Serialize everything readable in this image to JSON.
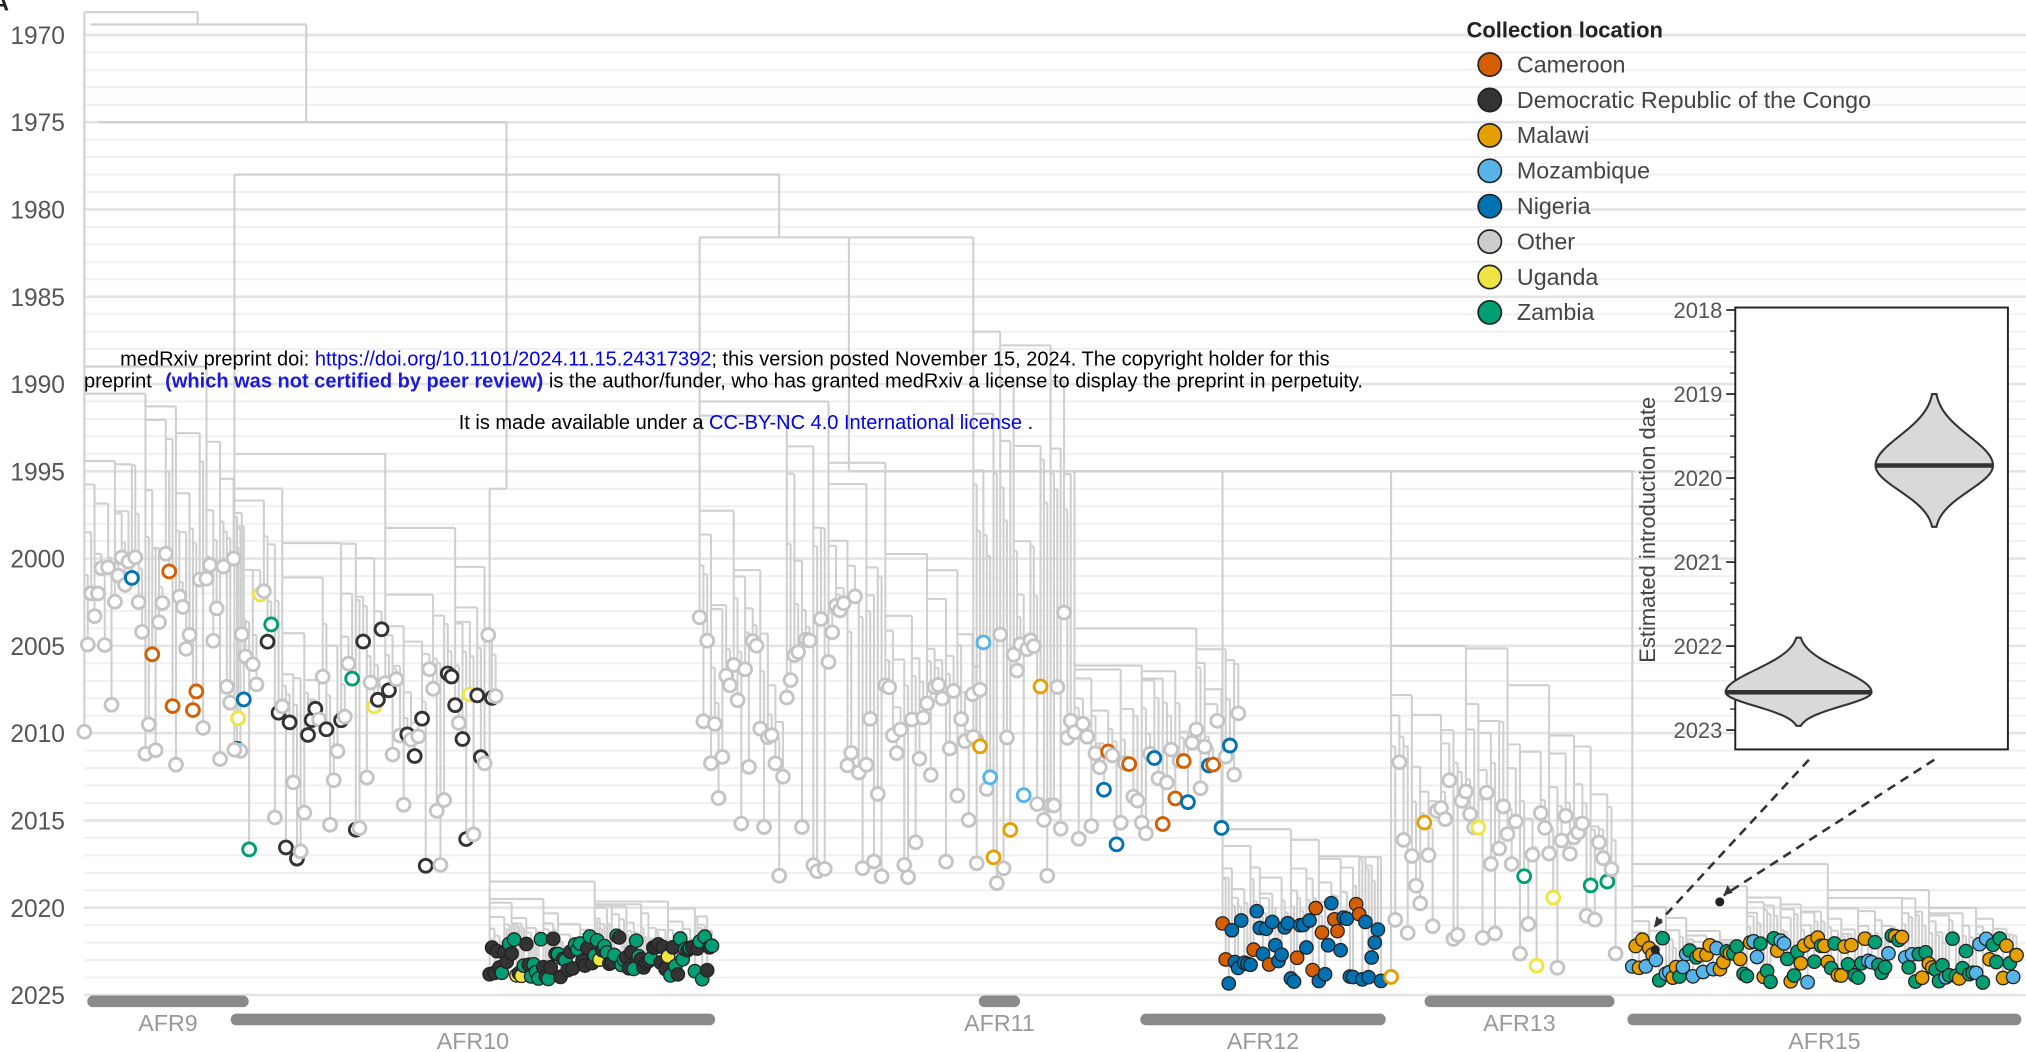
{
  "panel_label": "A",
  "chart_data": {
    "type": "tree",
    "ylim": [
      1968,
      2028.4
    ],
    "yticks": [
      1970,
      1975,
      1980,
      1985,
      1990,
      1995,
      2000,
      2005,
      2010,
      2015,
      2020,
      2025
    ],
    "grid": true,
    "legend": {
      "title": "Collection location",
      "entries": [
        {
          "name": "Cameroon",
          "color": "#d55e00"
        },
        {
          "name": "Democratic Republic of the Congo",
          "color": "#333333"
        },
        {
          "name": "Malawi",
          "color": "#e69f00"
        },
        {
          "name": "Mozambique",
          "color": "#56b4e9"
        },
        {
          "name": "Nigeria",
          "color": "#0072b2"
        },
        {
          "name": "Other",
          "color": "#cccccc"
        },
        {
          "name": "Uganda",
          "color": "#f0e442"
        },
        {
          "name": "Zambia",
          "color": "#009e73"
        }
      ]
    },
    "clades": [
      "AFR9",
      "AFR10",
      "AFR11",
      "AFR12",
      "AFR13",
      "AFR15"
    ],
    "inset": {
      "type": "violin",
      "ylabel": "Estimated introduction date",
      "ylim": [
        2017.97,
        2023.23
      ],
      "yticks": [
        2018,
        2019,
        2020,
        2021,
        2022,
        2023
      ],
      "violins": [
        {
          "min": 2019,
          "median": 2019.85,
          "max": 2020.58
        },
        {
          "min": 2021.9,
          "median": 2022.55,
          "max": 2022.95
        }
      ]
    }
  },
  "watermark": {
    "line1": [
      "medRxiv preprint doi: ",
      "https://doi.org/10.1101/2024.11.15.24317392",
      "; this version posted November 15, 2024. The copyright holder for this"
    ],
    "line2": [
      "preprint ",
      "(which was not certified by peer review)",
      " is the author/funder, who has granted medRxiv a license to display the preprint in perpetuity."
    ],
    "line3": [
      "It is made available under a ",
      "CC-BY-NC 4.0 International license",
      " ."
    ]
  }
}
